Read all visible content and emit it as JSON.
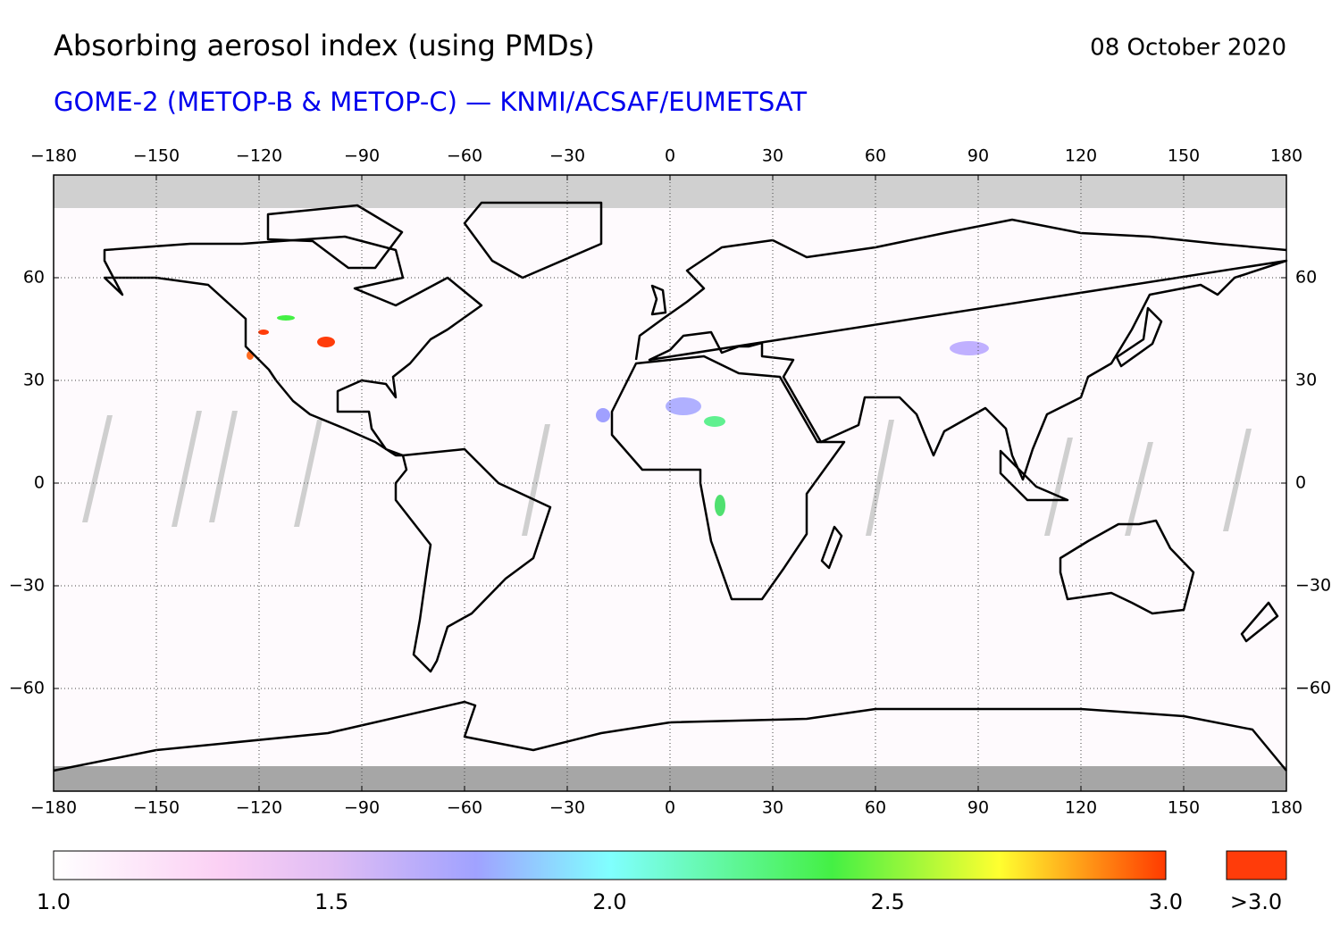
{
  "header": {
    "title": "Absorbing aerosol index (using PMDs)",
    "date": "08 October 2020",
    "subtitle": "GOME-2 (METOP-B & METOP-C) — KNMI/ACSAF/EUMETSAT"
  },
  "map": {
    "xlim": [
      -180,
      180
    ],
    "ylim": [
      -90,
      90
    ],
    "xticks": [
      {
        "value": -180,
        "label": "−180"
      },
      {
        "value": -150,
        "label": "−150"
      },
      {
        "value": -120,
        "label": "−120"
      },
      {
        "value": -90,
        "label": "−90"
      },
      {
        "value": -60,
        "label": "−60"
      },
      {
        "value": -30,
        "label": "−30"
      },
      0,
      30,
      60,
      90,
      120,
      150,
      180
    ],
    "yticks": [
      60,
      30,
      0,
      {
        "value": -30,
        "label": "−30"
      },
      {
        "value": -60,
        "label": "−60"
      }
    ],
    "grid": true
  },
  "colorbar": {
    "lim": [
      1,
      3
    ],
    "ticks": [
      {
        "value": 1,
        "label": "1.0"
      },
      {
        "value": 1.5,
        "label": "1.5"
      },
      {
        "value": 2,
        "label": "2.0"
      },
      {
        "value": 2.5,
        "label": "2.5"
      },
      {
        "value": 3,
        "label": "3.0"
      }
    ],
    "over_label": ">3.0"
  }
}
